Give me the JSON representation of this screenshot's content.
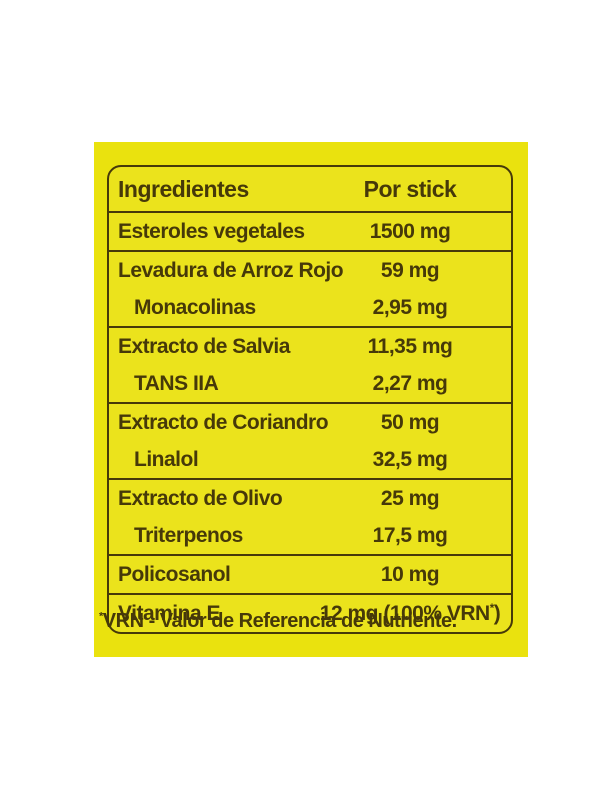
{
  "colors": {
    "label_background": "#eae20e",
    "ink": "#463909"
  },
  "table": {
    "header": {
      "ingredient": "Ingredientes",
      "amount": "Por stick"
    },
    "rows": [
      {
        "label": "Esteroles vegetales",
        "value": "1500 mg",
        "sub": false
      },
      {
        "label": "Levadura de Arroz Rojo",
        "value": "59 mg",
        "sub": false
      },
      {
        "label": "Monacolinas",
        "value": "2,95 mg",
        "sub": true
      },
      {
        "label": "Extracto de Salvia",
        "value": "11,35 mg",
        "sub": false
      },
      {
        "label": "TANS IIA",
        "value": "2,27 mg",
        "sub": true
      },
      {
        "label": "Extracto de Coriandro",
        "value": "50 mg",
        "sub": false
      },
      {
        "label": "Linalol",
        "value": "32,5 mg",
        "sub": true
      },
      {
        "label": "Extracto de Olivo",
        "value": "25 mg",
        "sub": false
      },
      {
        "label": "Triterpenos",
        "value": "17,5 mg",
        "sub": true
      },
      {
        "label": "Policosanol",
        "value": "10 mg",
        "sub": false
      },
      {
        "label": "Vitamina E",
        "value": "12 mg (100% VRN*)",
        "sub": false
      }
    ]
  },
  "footnote": {
    "text": "*VRN - Valor de Referencia de Nutriente."
  }
}
